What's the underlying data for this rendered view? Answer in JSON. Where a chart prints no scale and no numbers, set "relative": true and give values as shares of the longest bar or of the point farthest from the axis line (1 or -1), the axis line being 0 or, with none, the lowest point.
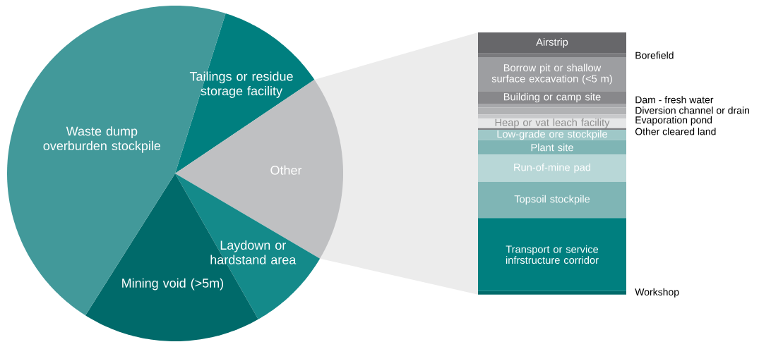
{
  "chart_data": [
    {
      "type": "pie",
      "categories": [
        "Tailings or residue storage facility",
        "Other",
        "Laydown or hardstand area",
        "Mining void (>5m)",
        "Waste dump overburden stockpile"
      ],
      "values": [
        10.7,
        17.9,
        8.3,
        17.2,
        45.9
      ],
      "colors": [
        "#007f7f",
        "#bfc0c2",
        "#148a8a",
        "#006a6a",
        "#42999a"
      ]
    },
    {
      "type": "bar",
      "stacked": true,
      "relative": true,
      "categories": [
        null
      ],
      "series": [
        {
          "name": "Workshop",
          "color": "#006a6a",
          "values": [
            0.013
          ]
        },
        {
          "name": "Transport or service infrstructure corridor",
          "color": "#007f7f",
          "values": [
            0.279
          ]
        },
        {
          "name": "Topsoil stockpile",
          "color": "#7fb5b5",
          "values": [
            0.138
          ]
        },
        {
          "name": "Run-of-mine pad",
          "color": "#b8d7d7",
          "values": [
            0.104
          ]
        },
        {
          "name": "Plant site",
          "color": "#7fb5b5",
          "values": [
            0.055
          ]
        },
        {
          "name": "Low-grade ore stockpile",
          "color": "#9fc8c8",
          "values": [
            0.04
          ]
        },
        {
          "name": "Other cleared land",
          "color": "#808083",
          "values": [
            0.006
          ]
        },
        {
          "name": "Heap or vat leach facility",
          "color": "#e6e7e8",
          "values": [
            0.036
          ]
        },
        {
          "name": "Evaporation pond",
          "color": "#c8c9cb",
          "values": [
            0.016
          ]
        },
        {
          "name": "Diversion channel or drain",
          "color": "#b1b2b4",
          "values": [
            0.027
          ]
        },
        {
          "name": "Dam - fresh water",
          "color": "#a7a8ab",
          "values": [
            0.012
          ]
        },
        {
          "name": "Building or camp site",
          "color": "#88888b",
          "values": [
            0.05
          ]
        },
        {
          "name": "Borrow pit or shallow surface excavation (<5 m)",
          "color": "#9d9ea1",
          "values": [
            0.13
          ]
        },
        {
          "name": "Borefield",
          "color": "#7a7a7d",
          "values": [
            0.014
          ]
        },
        {
          "name": "Airstrip",
          "color": "#67676a",
          "values": [
            0.08
          ]
        }
      ]
    }
  ]
}
